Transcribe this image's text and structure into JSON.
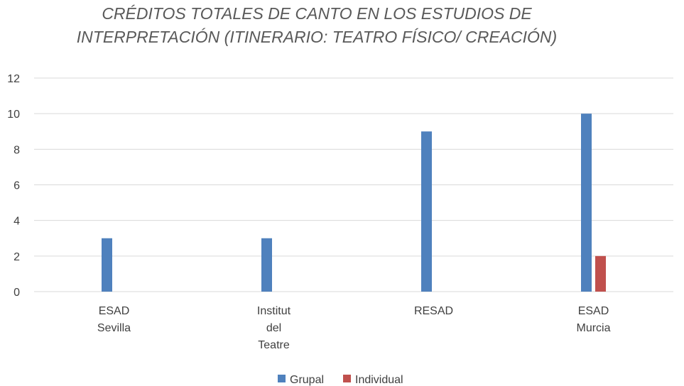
{
  "chart_data": {
    "type": "bar",
    "title_lines": [
      "CRÉDITOS TOTALES DE CANTO EN LOS ESTUDIOS DE",
      "INTERPRETACIÓN (ITINERARIO: TEATRO FÍSICO/ CREACIÓN)"
    ],
    "categories": [
      [
        "ESAD",
        "Sevilla"
      ],
      [
        "Institut",
        "del",
        "Teatre"
      ],
      [
        "RESAD"
      ],
      [
        "ESAD",
        "Murcia"
      ]
    ],
    "series": [
      {
        "name": "Grupal",
        "values": [
          3,
          3,
          9,
          10
        ],
        "color": "#4f81bd"
      },
      {
        "name": "Individual",
        "values": [
          0,
          0,
          0,
          2
        ],
        "color": "#c0504d"
      }
    ],
    "ylim": [
      0,
      12
    ],
    "yticks": [
      0,
      2,
      4,
      6,
      8,
      10,
      12
    ],
    "grid": true,
    "legend_position": "bottom"
  }
}
